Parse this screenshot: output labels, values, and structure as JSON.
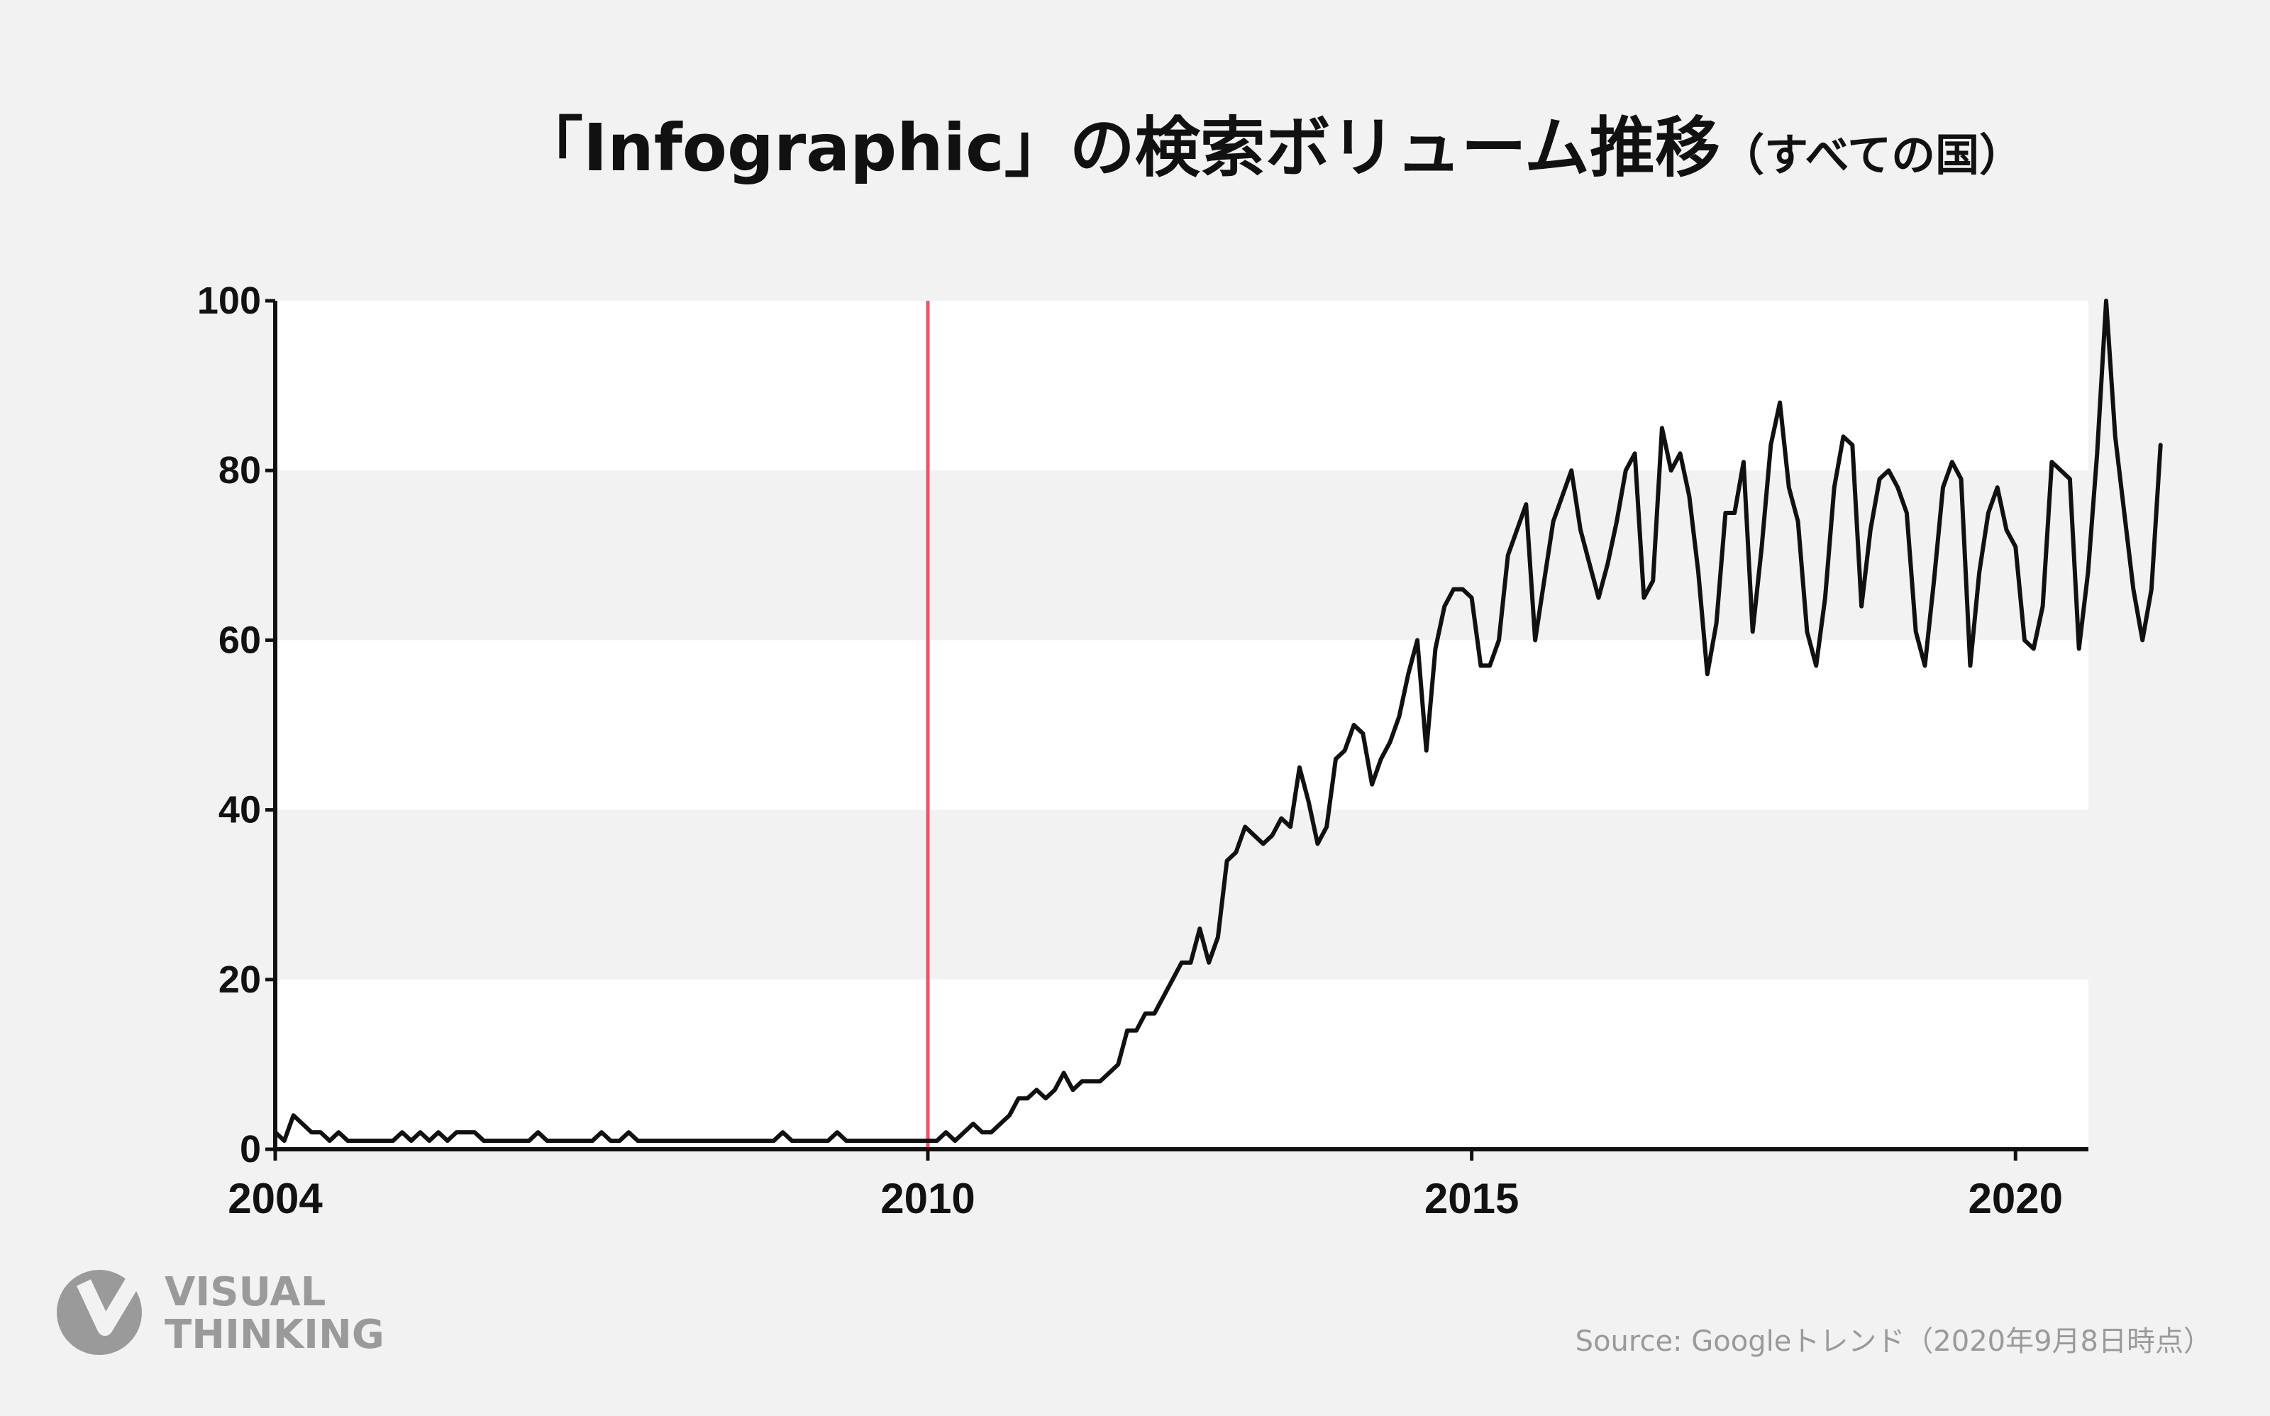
{
  "colors": {
    "background": "#f2f2f2",
    "band": "#ffffff",
    "line": "#111111",
    "marker": "#e8566c",
    "axis": "#111111",
    "muted": "#9a9a9a"
  },
  "logo": {
    "line1": "VISUAL",
    "line2": "THINKING"
  },
  "source": "Source: Googleトレンド（2020年9月8日時点）",
  "chart_data": {
    "type": "line",
    "title": "「Infographic」の検索ボリューム推移",
    "subtitle": "（すべての国）",
    "xlabel": "",
    "ylabel": "",
    "xlim": [
      2004.0,
      2020.67
    ],
    "ylim": [
      0,
      100
    ],
    "x_ticks": [
      {
        "value": 2004,
        "label": "2004"
      },
      {
        "value": 2010,
        "label": "2010"
      },
      {
        "value": 2015,
        "label": "2015"
      },
      {
        "value": 2020,
        "label": "2020"
      }
    ],
    "y_ticks": [
      {
        "value": 0,
        "label": "0"
      },
      {
        "value": 20,
        "label": "20"
      },
      {
        "value": 40,
        "label": "40"
      },
      {
        "value": 60,
        "label": "60"
      },
      {
        "value": 80,
        "label": "80"
      },
      {
        "value": 100,
        "label": "100"
      }
    ],
    "grid": "alternating horizontal bands",
    "legend": "none",
    "vertical_marker": 2010,
    "series": [
      {
        "start": "2004-01",
        "frequency": "monthly",
        "values": [
          2,
          1,
          4,
          3,
          2,
          2,
          1,
          2,
          1,
          1,
          1,
          1,
          1,
          1,
          2,
          1,
          2,
          1,
          2,
          1,
          2,
          2,
          2,
          1,
          1,
          1,
          1,
          1,
          1,
          2,
          1,
          1,
          1,
          1,
          1,
          1,
          2,
          1,
          1,
          2,
          1,
          1,
          1,
          1,
          1,
          1,
          1,
          1,
          1,
          1,
          1,
          1,
          1,
          1,
          1,
          1,
          2,
          1,
          1,
          1,
          1,
          1,
          2,
          1,
          1,
          1,
          1,
          1,
          1,
          1,
          1,
          1,
          1,
          1,
          2,
          1,
          2,
          3,
          2,
          2,
          3,
          4,
          6,
          6,
          7,
          6,
          7,
          9,
          7,
          8,
          8,
          8,
          9,
          10,
          14,
          14,
          16,
          16,
          18,
          20,
          22,
          22,
          26,
          22,
          25,
          34,
          35,
          38,
          37,
          36,
          37,
          39,
          38,
          45,
          41,
          36,
          38,
          46,
          47,
          50,
          49,
          43,
          46,
          48,
          51,
          56,
          60,
          47,
          59,
          64,
          66,
          66,
          65,
          57,
          57,
          60,
          70,
          73,
          76,
          60,
          67,
          74,
          77,
          80,
          73,
          69,
          65,
          69,
          74,
          80,
          82,
          65,
          67,
          85,
          80,
          82,
          77,
          68,
          56,
          62,
          75,
          75,
          81,
          61,
          71,
          83,
          88,
          78,
          74,
          61,
          57,
          65,
          78,
          84,
          83,
          64,
          73,
          79,
          80,
          78,
          75,
          61,
          57,
          67,
          78,
          81,
          79,
          57,
          68,
          75,
          78,
          73,
          71,
          60,
          59,
          64,
          81,
          80,
          79,
          59,
          68,
          82,
          100,
          84,
          75,
          66,
          60,
          66,
          83
        ]
      }
    ]
  }
}
